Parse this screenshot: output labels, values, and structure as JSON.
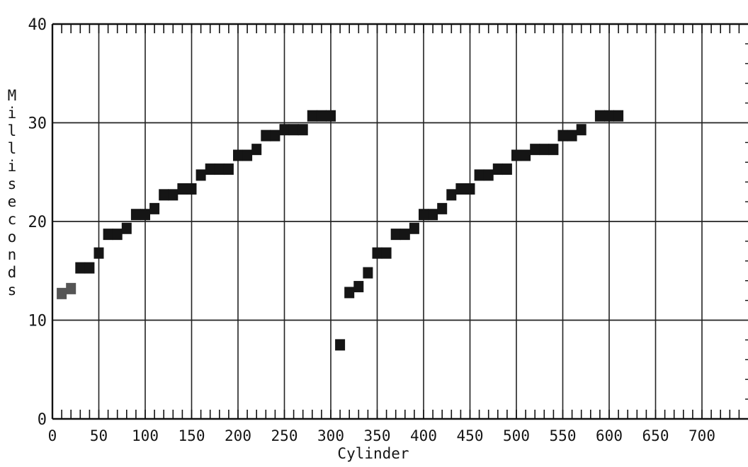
{
  "chart_data": {
    "type": "scatter",
    "title": "",
    "xlabel": "Cylinder",
    "ylabel": "Milliseconds",
    "xlim": [
      0,
      750
    ],
    "ylim": [
      0,
      40
    ],
    "x_ticks": [
      0,
      50,
      100,
      150,
      200,
      250,
      300,
      350,
      400,
      450,
      500,
      550,
      600,
      650,
      700
    ],
    "y_ticks": [
      0,
      10,
      20,
      30,
      40
    ],
    "grid": {
      "vertical_every": 50,
      "horizontal_at": [
        10,
        20,
        30
      ],
      "minor_x_every": 10
    },
    "legend": "none",
    "colors": {
      "marker": "#151515",
      "marker_light": "#555555",
      "grid": "#222222"
    },
    "series": [
      {
        "points": [
          {
            "x": 10,
            "y": 12.7
          },
          {
            "x": 20,
            "y": 13.2
          },
          {
            "x": 30,
            "y": 15.3
          },
          {
            "x": 40,
            "y": 15.3
          },
          {
            "x": 50,
            "y": 16.8
          },
          {
            "x": 60,
            "y": 18.7
          },
          {
            "x": 70,
            "y": 18.7
          },
          {
            "x": 80,
            "y": 19.3
          },
          {
            "x": 90,
            "y": 20.7
          },
          {
            "x": 100,
            "y": 20.7
          },
          {
            "x": 110,
            "y": 21.3
          },
          {
            "x": 120,
            "y": 22.7
          },
          {
            "x": 130,
            "y": 22.7
          },
          {
            "x": 140,
            "y": 23.3
          },
          {
            "x": 150,
            "y": 23.3
          },
          {
            "x": 160,
            "y": 24.7
          },
          {
            "x": 170,
            "y": 25.3
          },
          {
            "x": 180,
            "y": 25.3
          },
          {
            "x": 190,
            "y": 25.3
          },
          {
            "x": 200,
            "y": 26.7
          },
          {
            "x": 210,
            "y": 26.7
          },
          {
            "x": 220,
            "y": 27.3
          },
          {
            "x": 230,
            "y": 28.7
          },
          {
            "x": 240,
            "y": 28.7
          },
          {
            "x": 250,
            "y": 29.3
          },
          {
            "x": 260,
            "y": 29.3
          },
          {
            "x": 270,
            "y": 29.3
          },
          {
            "x": 280,
            "y": 30.7
          },
          {
            "x": 290,
            "y": 30.7
          },
          {
            "x": 300,
            "y": 30.7
          },
          {
            "x": 310,
            "y": 7.5
          },
          {
            "x": 320,
            "y": 12.8
          },
          {
            "x": 330,
            "y": 13.4
          },
          {
            "x": 340,
            "y": 14.8
          },
          {
            "x": 350,
            "y": 16.8
          },
          {
            "x": 360,
            "y": 16.8
          },
          {
            "x": 370,
            "y": 18.7
          },
          {
            "x": 380,
            "y": 18.7
          },
          {
            "x": 390,
            "y": 19.3
          },
          {
            "x": 400,
            "y": 20.7
          },
          {
            "x": 410,
            "y": 20.7
          },
          {
            "x": 420,
            "y": 21.3
          },
          {
            "x": 430,
            "y": 22.7
          },
          {
            "x": 440,
            "y": 23.3
          },
          {
            "x": 450,
            "y": 23.3
          },
          {
            "x": 460,
            "y": 24.7
          },
          {
            "x": 470,
            "y": 24.7
          },
          {
            "x": 480,
            "y": 25.3
          },
          {
            "x": 490,
            "y": 25.3
          },
          {
            "x": 500,
            "y": 26.7
          },
          {
            "x": 510,
            "y": 26.7
          },
          {
            "x": 520,
            "y": 27.3
          },
          {
            "x": 530,
            "y": 27.3
          },
          {
            "x": 540,
            "y": 27.3
          },
          {
            "x": 550,
            "y": 28.7
          },
          {
            "x": 560,
            "y": 28.7
          },
          {
            "x": 570,
            "y": 29.3
          },
          {
            "x": 590,
            "y": 30.7
          },
          {
            "x": 600,
            "y": 30.7
          },
          {
            "x": 610,
            "y": 30.7
          }
        ]
      }
    ]
  }
}
